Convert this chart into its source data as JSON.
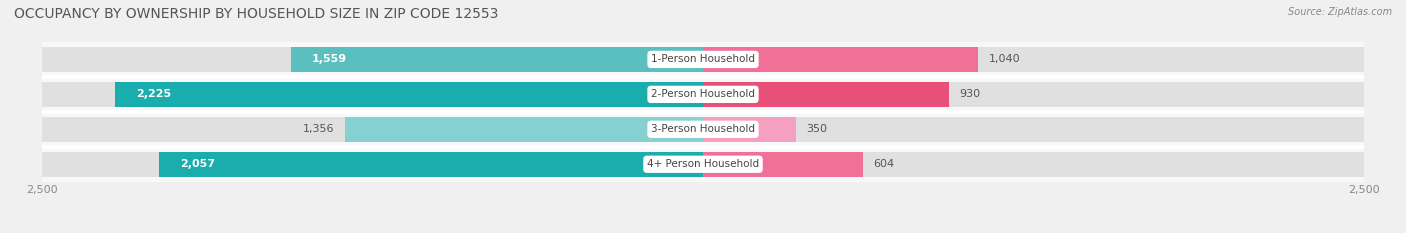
{
  "title": "OCCUPANCY BY OWNERSHIP BY HOUSEHOLD SIZE IN ZIP CODE 12553",
  "source": "Source: ZipAtlas.com",
  "categories": [
    "1-Person Household",
    "2-Person Household",
    "3-Person Household",
    "4+ Person Household"
  ],
  "owner_values": [
    1559,
    2225,
    1356,
    2057
  ],
  "renter_values": [
    1040,
    930,
    350,
    604
  ],
  "owner_colors": [
    "#5BBFBF",
    "#1AADAD",
    "#85D0D0",
    "#1AADAD"
  ],
  "renter_colors": [
    "#F07098",
    "#E8507A",
    "#F5A0C0",
    "#F07098"
  ],
  "owner_label_colors": [
    "white",
    "white",
    "#555555",
    "white"
  ],
  "renter_label_colors": [
    "#555555",
    "#555555",
    "#555555",
    "#555555"
  ],
  "legend_owner_color": "#3DBFBF",
  "legend_renter_color": "#F07098",
  "max_val": 2500,
  "axis_label": "2,500",
  "bg_color": "#f0f0f0",
  "bar_bg_color": "#e0e0e0",
  "row_bg_color": "#f8f8f8",
  "title_fontsize": 10,
  "value_fontsize": 8,
  "tick_fontsize": 8,
  "source_fontsize": 7,
  "category_fontsize": 7.5
}
